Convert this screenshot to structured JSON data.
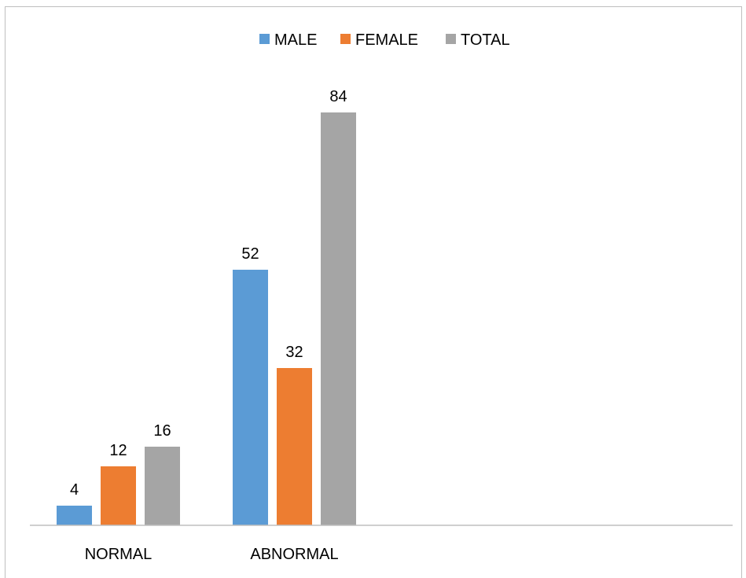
{
  "chart_data": {
    "type": "bar",
    "title": "",
    "xlabel": "",
    "ylabel": "",
    "categories": [
      "NORMAL",
      "ABNORMAL"
    ],
    "series": [
      {
        "name": "MALE",
        "values": [
          4,
          52
        ],
        "color": "#5b9bd5"
      },
      {
        "name": "FEMALE",
        "values": [
          12,
          32
        ],
        "color": "#ed7d31"
      },
      {
        "name": "TOTAL",
        "values": [
          16,
          84
        ],
        "color": "#a5a5a5"
      }
    ],
    "ylim": [
      0,
      100
    ],
    "grid": false,
    "data_labels": true,
    "legend_position": "top-center",
    "axis_line_color": "#bfbfbf"
  }
}
